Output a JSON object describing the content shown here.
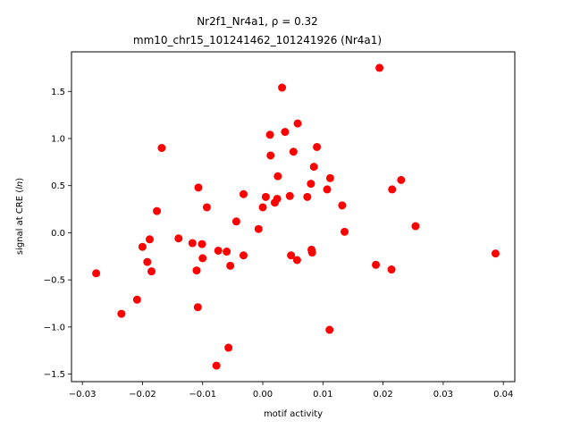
{
  "chart_data": {
    "type": "scatter",
    "title_line1": "Nr2f1_Nr4a1, ρ = 0.32",
    "title_line2": "mm10_chr15_101241462_101241926 (Nr4a1)",
    "xlabel": "motif activity",
    "ylabel": "signal at CRE (ln)",
    "xlim": [
      -0.0318,
      0.0419
    ],
    "ylim": [
      -1.58,
      1.92
    ],
    "xticks": [
      -0.03,
      -0.02,
      -0.01,
      0.0,
      0.01,
      0.02,
      0.03,
      0.04
    ],
    "xtick_labels": [
      "−0.03",
      "−0.02",
      "−0.01",
      "0.00",
      "0.01",
      "0.02",
      "0.03",
      "0.04"
    ],
    "yticks": [
      -1.5,
      -1.0,
      -0.5,
      0.0,
      0.5,
      1.0,
      1.5
    ],
    "ytick_labels": [
      "−1.5",
      "−1.0",
      "−0.5",
      "0.0",
      "0.5",
      "1.0",
      "1.5"
    ],
    "grid": false,
    "marker_color": "#ff0000",
    "points": [
      {
        "x": -0.0277,
        "y": -0.43
      },
      {
        "x": -0.0235,
        "y": -0.86
      },
      {
        "x": -0.0209,
        "y": -0.71
      },
      {
        "x": -0.02,
        "y": -0.15
      },
      {
        "x": -0.0192,
        "y": -0.31
      },
      {
        "x": -0.0188,
        "y": -0.07
      },
      {
        "x": -0.0185,
        "y": -0.41
      },
      {
        "x": -0.0176,
        "y": 0.23
      },
      {
        "x": -0.0168,
        "y": 0.9
      },
      {
        "x": -0.014,
        "y": -0.06
      },
      {
        "x": -0.0117,
        "y": -0.11
      },
      {
        "x": -0.011,
        "y": -0.4
      },
      {
        "x": -0.0108,
        "y": -0.79
      },
      {
        "x": -0.0107,
        "y": 0.48
      },
      {
        "x": -0.0101,
        "y": -0.12
      },
      {
        "x": -0.01,
        "y": -0.27
      },
      {
        "x": -0.0093,
        "y": 0.27
      },
      {
        "x": -0.0077,
        "y": -1.41
      },
      {
        "x": -0.0074,
        "y": -0.19
      },
      {
        "x": -0.006,
        "y": -0.2
      },
      {
        "x": -0.0057,
        "y": -1.22
      },
      {
        "x": -0.0054,
        "y": -0.35
      },
      {
        "x": -0.0044,
        "y": 0.12
      },
      {
        "x": -0.0032,
        "y": 0.41
      },
      {
        "x": -0.0032,
        "y": -0.24
      },
      {
        "x": -0.0007,
        "y": 0.04
      },
      {
        "x": 0.0,
        "y": 0.27
      },
      {
        "x": 0.0005,
        "y": 0.38
      },
      {
        "x": 0.0012,
        "y": 1.04
      },
      {
        "x": 0.0013,
        "y": 0.82
      },
      {
        "x": 0.002,
        "y": 0.32
      },
      {
        "x": 0.0024,
        "y": 0.36
      },
      {
        "x": 0.0025,
        "y": 0.6
      },
      {
        "x": 0.0032,
        "y": 1.54
      },
      {
        "x": 0.0037,
        "y": 1.07
      },
      {
        "x": 0.0045,
        "y": 0.39
      },
      {
        "x": 0.0047,
        "y": -0.24
      },
      {
        "x": 0.0051,
        "y": 0.86
      },
      {
        "x": 0.0057,
        "y": -0.29
      },
      {
        "x": 0.0058,
        "y": 1.16
      },
      {
        "x": 0.0074,
        "y": 0.38
      },
      {
        "x": 0.008,
        "y": 0.52
      },
      {
        "x": 0.0081,
        "y": -0.18
      },
      {
        "x": 0.0082,
        "y": -0.21
      },
      {
        "x": 0.0085,
        "y": 0.7
      },
      {
        "x": 0.009,
        "y": 0.91
      },
      {
        "x": 0.0107,
        "y": 0.46
      },
      {
        "x": 0.0111,
        "y": -1.03
      },
      {
        "x": 0.0112,
        "y": 0.58
      },
      {
        "x": 0.0132,
        "y": 0.29
      },
      {
        "x": 0.0136,
        "y": 0.01
      },
      {
        "x": 0.0188,
        "y": -0.34
      },
      {
        "x": 0.0194,
        "y": 1.75
      },
      {
        "x": 0.0214,
        "y": -0.39
      },
      {
        "x": 0.0215,
        "y": 0.46
      },
      {
        "x": 0.023,
        "y": 0.56
      },
      {
        "x": 0.0254,
        "y": 0.07
      },
      {
        "x": 0.0387,
        "y": -0.22
      }
    ]
  }
}
